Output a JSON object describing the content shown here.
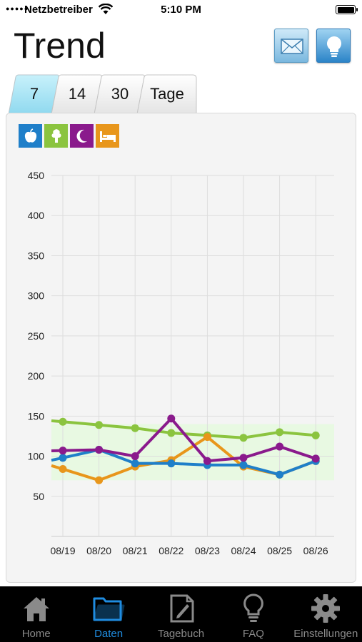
{
  "status": {
    "carrier": "Netzbetreiber",
    "time": "5:10 PM"
  },
  "header": {
    "title": "Trend",
    "mail_icon": "envelope-icon",
    "tip_icon": "lightbulb-icon"
  },
  "tabs": [
    {
      "label": "7",
      "selected": true
    },
    {
      "label": "14",
      "selected": false
    },
    {
      "label": "30",
      "selected": false
    }
  ],
  "tabs_unit": "Tage",
  "legend": [
    {
      "icon": "apple-icon",
      "color": "#1f7fc9"
    },
    {
      "icon": "tree-icon",
      "color": "#8bc43f"
    },
    {
      "icon": "moon-icon",
      "color": "#8a1a8c"
    },
    {
      "icon": "bed-icon",
      "color": "#e8961b"
    }
  ],
  "chart_data": {
    "type": "line",
    "categories": [
      "08/19",
      "08/20",
      "08/21",
      "08/22",
      "08/23",
      "08/24",
      "08/25",
      "08/26"
    ],
    "yticks": [
      50,
      100,
      150,
      200,
      250,
      300,
      350,
      400,
      450
    ],
    "ylim": [
      0,
      450
    ],
    "target_band": [
      70,
      140
    ],
    "series": [
      {
        "color": "#8bc43f",
        "values": [
          143,
          139,
          135,
          129,
          126,
          123,
          130,
          126
        ]
      },
      {
        "color": "#e8961b",
        "values": [
          84,
          70,
          87,
          95,
          124,
          87,
          77,
          94
        ]
      },
      {
        "color": "#1f7fc9",
        "values": [
          98,
          108,
          91,
          91,
          89,
          89,
          77,
          94
        ]
      },
      {
        "color": "#8a1a8c",
        "values": [
          107,
          108,
          100,
          147,
          94,
          98,
          112,
          97
        ]
      }
    ],
    "grid": true
  },
  "tabbar": [
    {
      "label": "Home",
      "icon": "home-icon",
      "active": false
    },
    {
      "label": "Daten",
      "icon": "folder-icon",
      "active": true
    },
    {
      "label": "Tagebuch",
      "icon": "diary-icon",
      "active": false
    },
    {
      "label": "FAQ",
      "icon": "lightbulb-icon",
      "active": false
    },
    {
      "label": "Einstellungen",
      "icon": "gear-icon",
      "active": false
    }
  ]
}
